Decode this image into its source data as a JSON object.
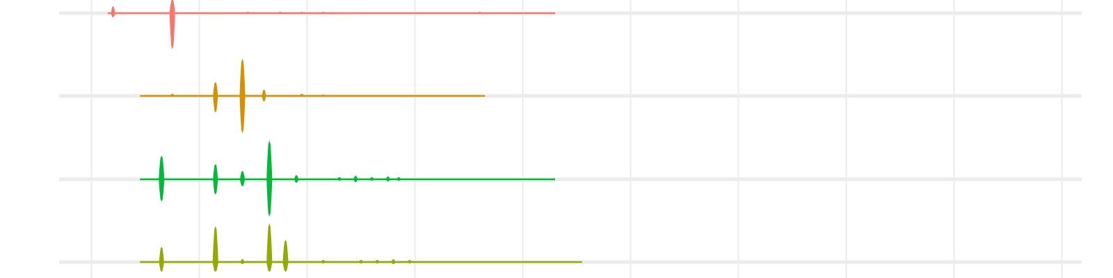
{
  "chart_data": {
    "type": "area",
    "title": "",
    "xlabel": "",
    "ylabel": "",
    "grid": true,
    "legend": "none",
    "xlim": [
      0,
      10
    ],
    "x_gridlines": [
      0.3,
      1.3,
      2.3,
      3.3,
      4.3,
      5.3,
      6.3,
      7.3,
      8.3,
      9.3,
      10.3
    ],
    "series": [
      {
        "color": "#F8766D",
        "label": "",
        "x_range": [
          0.45,
          4.6
        ],
        "bursts": [
          {
            "x": 0.5,
            "up": 10,
            "down": 6
          },
          {
            "x": 1.05,
            "up": 20,
            "down": 52
          },
          {
            "x": 1.4,
            "up": 1,
            "down": 1
          },
          {
            "x": 1.75,
            "up": 2,
            "down": 1
          },
          {
            "x": 2.05,
            "up": 2,
            "down": 1
          },
          {
            "x": 2.25,
            "up": 2,
            "down": 1
          },
          {
            "x": 2.45,
            "up": 2,
            "down": 1
          },
          {
            "x": 2.65,
            "up": 1,
            "down": 1
          },
          {
            "x": 3.9,
            "up": 2,
            "down": 1
          }
        ]
      },
      {
        "color": "#D39200",
        "label": "",
        "x_range": [
          0.75,
          3.95
        ],
        "bursts": [
          {
            "x": 1.05,
            "up": 3,
            "down": 1
          },
          {
            "x": 1.45,
            "up": 20,
            "down": 24
          },
          {
            "x": 1.7,
            "up": 54,
            "down": 54
          },
          {
            "x": 1.9,
            "up": 9,
            "down": 8
          },
          {
            "x": 2.25,
            "up": 3,
            "down": 1
          },
          {
            "x": 2.45,
            "up": 2,
            "down": 1
          }
        ]
      },
      {
        "color": "#00BA38",
        "label": "",
        "x_range": [
          0.75,
          4.6
        ],
        "bursts": [
          {
            "x": 0.95,
            "up": 34,
            "down": 32
          },
          {
            "x": 1.45,
            "up": 22,
            "down": 22
          },
          {
            "x": 1.7,
            "up": 12,
            "down": 10
          },
          {
            "x": 1.95,
            "up": 56,
            "down": 54
          },
          {
            "x": 2.2,
            "up": 6,
            "down": 5
          },
          {
            "x": 2.6,
            "up": 3,
            "down": 2
          },
          {
            "x": 2.75,
            "up": 5,
            "down": 4
          },
          {
            "x": 2.9,
            "up": 3,
            "down": 2
          },
          {
            "x": 3.05,
            "up": 4,
            "down": 3
          },
          {
            "x": 3.15,
            "up": 3,
            "down": 2
          }
        ]
      },
      {
        "color": "#93AA00",
        "label": "",
        "x_range": [
          0.75,
          4.85
        ],
        "bursts": [
          {
            "x": 0.95,
            "up": 22,
            "down": 14
          },
          {
            "x": 1.45,
            "up": 52,
            "down": 14
          },
          {
            "x": 1.7,
            "up": 4,
            "down": 3
          },
          {
            "x": 1.95,
            "up": 56,
            "down": 14
          },
          {
            "x": 2.1,
            "up": 32,
            "down": 14
          },
          {
            "x": 2.45,
            "up": 3,
            "down": 2
          },
          {
            "x": 2.8,
            "up": 3,
            "down": 2
          },
          {
            "x": 2.95,
            "up": 3,
            "down": 2
          },
          {
            "x": 3.1,
            "up": 4,
            "down": 3
          },
          {
            "x": 3.25,
            "up": 3,
            "down": 2
          }
        ]
      }
    ]
  }
}
